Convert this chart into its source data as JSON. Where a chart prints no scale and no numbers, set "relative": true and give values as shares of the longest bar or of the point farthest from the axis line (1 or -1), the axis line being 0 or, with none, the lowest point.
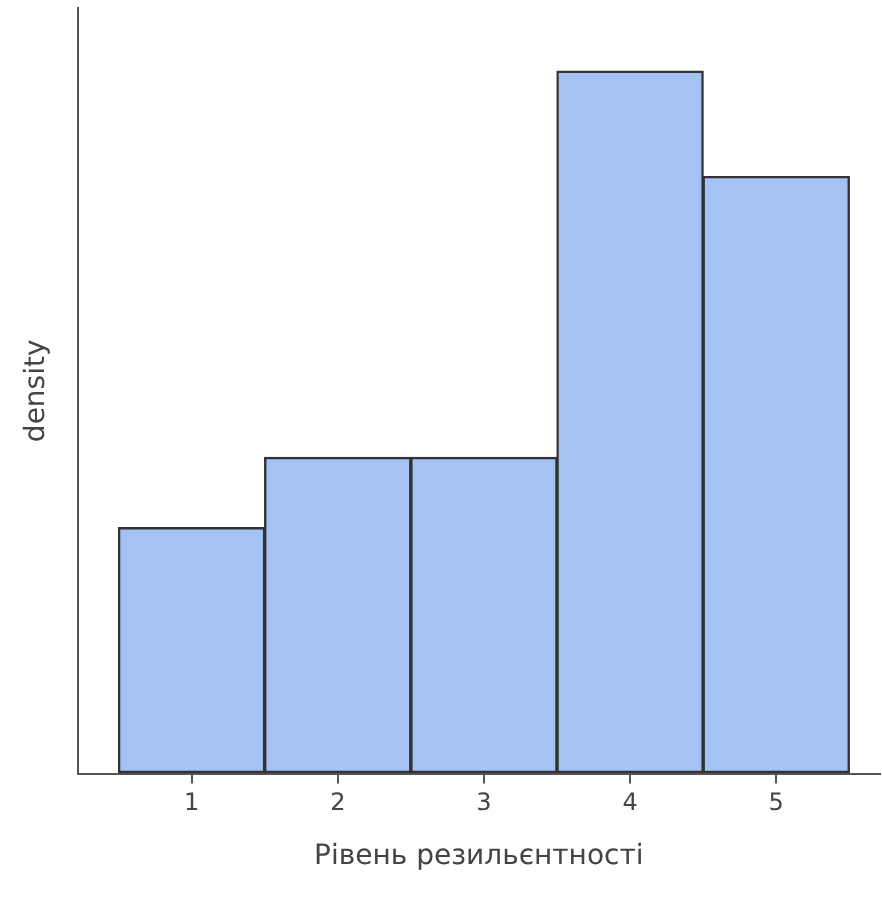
{
  "chart_data": {
    "type": "bar",
    "xlabel": "Рівень резильєнтності",
    "ylabel": "density",
    "relative": true,
    "categories": [
      "1",
      "2",
      "3",
      "4",
      "5"
    ],
    "values": [
      0.35,
      0.45,
      0.45,
      1,
      0.85
    ],
    "color": "#a4c2f4",
    "grid": false,
    "legend": false
  }
}
